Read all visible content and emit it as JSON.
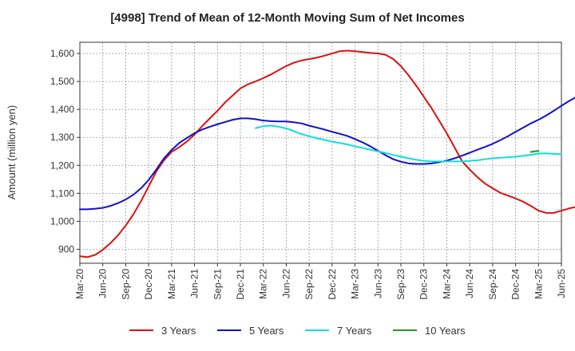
{
  "chart_data": {
    "type": "line",
    "title": "[4998]  Trend of Mean of 12-Month Moving Sum of Net Incomes",
    "xlabel": "",
    "ylabel": "Amount (million yen)",
    "ylim": [
      850,
      1640
    ],
    "yticks": [
      900,
      1000,
      1100,
      1200,
      1300,
      1400,
      1500,
      1600
    ],
    "ytick_labels": [
      "900",
      "1,000",
      "1,100",
      "1,200",
      "1,300",
      "1,400",
      "1,500",
      "1,600"
    ],
    "xticks": [
      "Mar-20",
      "Jun-20",
      "Sep-20",
      "Dec-20",
      "Mar-21",
      "Jun-21",
      "Sep-21",
      "Dec-21",
      "Mar-22",
      "Jun-22",
      "Sep-22",
      "Dec-22",
      "Mar-23",
      "Jun-23",
      "Sep-23",
      "Dec-23",
      "Mar-24",
      "Jun-24",
      "Sep-24",
      "Dec-24",
      "Mar-25",
      "Jun-25"
    ],
    "grid": true,
    "legend_position": "bottom",
    "series": [
      {
        "name": "3 Years",
        "color": "#dd1111",
        "start": "Mar-20",
        "values": [
          875,
          872,
          880,
          898,
          922,
          950,
          985,
          1025,
          1072,
          1125,
          1178,
          1218,
          1248,
          1265,
          1285,
          1310,
          1340,
          1368,
          1395,
          1425,
          1450,
          1475,
          1490,
          1500,
          1512,
          1525,
          1540,
          1555,
          1567,
          1575,
          1580,
          1585,
          1592,
          1600,
          1608,
          1610,
          1608,
          1605,
          1602,
          1600,
          1595,
          1580,
          1555,
          1522,
          1485,
          1445,
          1405,
          1360,
          1315,
          1265,
          1215,
          1185,
          1158,
          1135,
          1118,
          1102,
          1092,
          1082,
          1070,
          1055,
          1038,
          1030,
          1030,
          1038,
          1046,
          1052,
          1054
        ]
      },
      {
        "name": "5 Years",
        "color": "#1111cc",
        "start": "Mar-20",
        "values": [
          1043,
          1043,
          1045,
          1048,
          1055,
          1065,
          1078,
          1095,
          1118,
          1148,
          1185,
          1225,
          1255,
          1280,
          1298,
          1315,
          1328,
          1338,
          1347,
          1355,
          1363,
          1368,
          1368,
          1365,
          1360,
          1358,
          1357,
          1357,
          1354,
          1350,
          1342,
          1335,
          1328,
          1320,
          1313,
          1305,
          1294,
          1282,
          1268,
          1252,
          1236,
          1222,
          1213,
          1207,
          1205,
          1205,
          1207,
          1211,
          1217,
          1225,
          1235,
          1245,
          1256,
          1266,
          1277,
          1290,
          1304,
          1320,
          1335,
          1350,
          1363,
          1378,
          1395,
          1413,
          1430,
          1445,
          1456,
          1465
        ]
      },
      {
        "name": "7 Years",
        "color": "#11dddd",
        "start": "Feb-22",
        "values": [
          1333,
          1340,
          1342,
          1338,
          1332,
          1322,
          1312,
          1304,
          1297,
          1291,
          1285,
          1280,
          1275,
          1268,
          1262,
          1256,
          1250,
          1244,
          1237,
          1231,
          1225,
          1220,
          1216,
          1214,
          1214,
          1214,
          1214,
          1214,
          1216,
          1218,
          1222,
          1225,
          1227,
          1229,
          1231,
          1234,
          1238,
          1242,
          1243,
          1241,
          1240
        ]
      },
      {
        "name": "10 Years",
        "color": "#229922",
        "start": "Feb-25",
        "values": [
          1248,
          1252
        ]
      }
    ]
  }
}
